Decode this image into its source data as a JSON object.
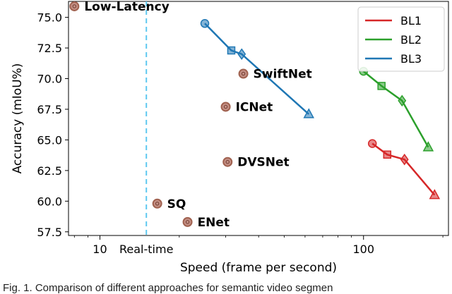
{
  "chart_data": {
    "type": "scatter",
    "xlabel": "Speed (frame per second)",
    "ylabel": "Accuracy (mIoU%)",
    "x_scale": "log",
    "xlim": [
      7.6,
      210
    ],
    "ylim": [
      57.2,
      76.3
    ],
    "x_ticks": [
      {
        "value": 10,
        "label": "10"
      },
      {
        "value": 100,
        "label": "100"
      }
    ],
    "y_ticks": [
      {
        "value": 57.5,
        "label": "57.5"
      },
      {
        "value": 60.0,
        "label": "60.0"
      },
      {
        "value": 62.5,
        "label": "62.5"
      },
      {
        "value": 65.0,
        "label": "65.0"
      },
      {
        "value": 67.5,
        "label": "67.5"
      },
      {
        "value": 70.0,
        "label": "70.0"
      },
      {
        "value": 72.5,
        "label": "72.5"
      },
      {
        "value": 75.0,
        "label": "75.0"
      }
    ],
    "realtime_line": {
      "x": 15,
      "label": "Real-time",
      "color": "#5ec8f0"
    },
    "points": [
      {
        "name": "Low-Latency",
        "x": 8.0,
        "y": 75.9
      },
      {
        "name": "SwiftNet",
        "x": 35.0,
        "y": 70.4
      },
      {
        "name": "ICNet",
        "x": 30.0,
        "y": 67.7
      },
      {
        "name": "DVSNet",
        "x": 30.5,
        "y": 63.2
      },
      {
        "name": "SQ",
        "x": 16.5,
        "y": 59.8
      },
      {
        "name": "ENet",
        "x": 21.5,
        "y": 58.3
      }
    ],
    "point_color": "#a0614f",
    "series": [
      {
        "name": "BL1",
        "color": "#d62728",
        "x": [
          108,
          123,
          143,
          186
        ],
        "y": [
          64.7,
          63.8,
          63.4,
          60.5
        ]
      },
      {
        "name": "BL2",
        "color": "#2ca02c",
        "x": [
          100,
          117,
          140,
          176
        ],
        "y": [
          70.6,
          69.4,
          68.2,
          64.4
        ]
      },
      {
        "name": "BL3",
        "color": "#1f77b4",
        "x": [
          25,
          31.5,
          34.5,
          62
        ],
        "y": [
          74.5,
          72.3,
          72.0,
          67.1
        ]
      }
    ],
    "legend": "top-right"
  },
  "caption": "Fig. 1. Comparison of different approaches for semantic video segmen"
}
